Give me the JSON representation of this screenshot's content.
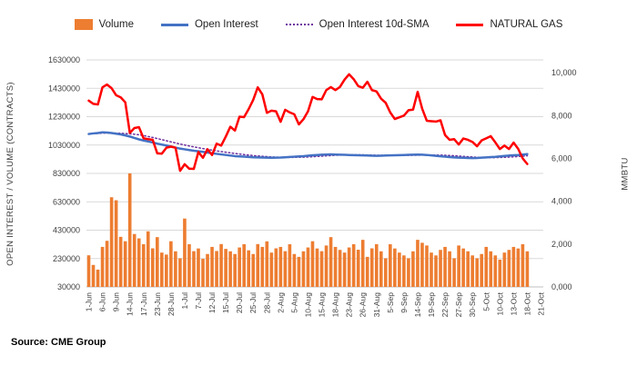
{
  "page": {
    "source_note": "Source: CME Group"
  },
  "chart_data": {
    "type": "combo",
    "title": "",
    "x_tick_labels": [
      "1-Jun",
      "6-Jun",
      "9-Jun",
      "14-Jun",
      "17-Jun",
      "23-Jun",
      "28-Jun",
      "1-Jul",
      "7-Jul",
      "12-Jul",
      "15-Jul",
      "20-Jul",
      "25-Jul",
      "28-Jul",
      "2-Aug",
      "5-Aug",
      "10-Aug",
      "15-Aug",
      "18-Aug",
      "23-Aug",
      "26-Aug",
      "31-Aug",
      "5-Sep",
      "9-Sep",
      "14-Sep",
      "19-Sep",
      "22-Sep",
      "27-Sep",
      "30-Sep",
      "5-Oct",
      "10-Oct",
      "13-Oct",
      "18-Oct",
      "21-Oct"
    ],
    "dates": [
      "1-Jun",
      "2-Jun",
      "3-Jun",
      "6-Jun",
      "7-Jun",
      "8-Jun",
      "9-Jun",
      "10-Jun",
      "13-Jun",
      "14-Jun",
      "15-Jun",
      "16-Jun",
      "17-Jun",
      "21-Jun",
      "22-Jun",
      "23-Jun",
      "24-Jun",
      "27-Jun",
      "28-Jun",
      "29-Jun",
      "30-Jun",
      "1-Jul",
      "5-Jul",
      "6-Jul",
      "7-Jul",
      "8-Jul",
      "11-Jul",
      "12-Jul",
      "13-Jul",
      "14-Jul",
      "15-Jul",
      "18-Jul",
      "19-Jul",
      "20-Jul",
      "21-Jul",
      "22-Jul",
      "25-Jul",
      "26-Jul",
      "27-Jul",
      "28-Jul",
      "29-Jul",
      "1-Aug",
      "2-Aug",
      "3-Aug",
      "4-Aug",
      "5-Aug",
      "8-Aug",
      "9-Aug",
      "10-Aug",
      "11-Aug",
      "12-Aug",
      "15-Aug",
      "16-Aug",
      "17-Aug",
      "18-Aug",
      "19-Aug",
      "22-Aug",
      "23-Aug",
      "24-Aug",
      "25-Aug",
      "26-Aug",
      "29-Aug",
      "30-Aug",
      "31-Aug",
      "1-Sep",
      "2-Sep",
      "6-Sep",
      "7-Sep",
      "8-Sep",
      "9-Sep",
      "12-Sep",
      "13-Sep",
      "14-Sep",
      "15-Sep",
      "16-Sep",
      "19-Sep",
      "20-Sep",
      "21-Sep",
      "22-Sep",
      "23-Sep",
      "26-Sep",
      "27-Sep",
      "28-Sep",
      "29-Sep",
      "30-Sep",
      "3-Oct",
      "4-Oct",
      "5-Oct",
      "6-Oct",
      "7-Oct",
      "10-Oct",
      "11-Oct",
      "12-Oct",
      "13-Oct",
      "14-Oct",
      "17-Oct",
      "18-Oct"
    ],
    "left_axis": {
      "label": "OPEN INTEREST / VOLUME (CONTRACTS)",
      "min": 30000,
      "max": 1630000,
      "tick_values": [
        1630000,
        1430000,
        1230000,
        1030000,
        830000,
        630000,
        430000,
        230000,
        30000
      ],
      "tick_labels": [
        "1630000",
        "1430000",
        "1230000",
        "1030000",
        "830000",
        "630000",
        "430000",
        "230000",
        "30000"
      ]
    },
    "right_axis": {
      "label": "MMBTU",
      "min": 0,
      "plot_max": 10600,
      "tick_values": [
        10000,
        8000,
        6000,
        4000,
        2000,
        0
      ],
      "tick_labels": [
        "10,000",
        "8,000",
        "6,000",
        "4,000",
        "2,000",
        "0,000"
      ]
    },
    "grid": "horizontal",
    "legend_position": "top",
    "series": [
      {
        "name": "Volume",
        "type": "bar",
        "axis": "left",
        "color": "#ED7D31",
        "values": [
          253000,
          185000,
          152000,
          312000,
          355000,
          662000,
          641000,
          383000,
          352000,
          830000,
          403000,
          372000,
          331000,
          422000,
          302000,
          381000,
          272000,
          258000,
          352000,
          281000,
          232000,
          512000,
          331000,
          282000,
          301000,
          228000,
          262000,
          312000,
          283000,
          332000,
          298000,
          281000,
          262000,
          308000,
          331000,
          288000,
          262000,
          332000,
          312000,
          351000,
          272000,
          302000,
          312000,
          282000,
          331000,
          262000,
          242000,
          281000,
          308000,
          352000,
          301000,
          282000,
          322000,
          381000,
          312000,
          291000,
          272000,
          308000,
          331000,
          292000,
          362000,
          242000,
          302000,
          331000,
          281000,
          232000,
          331000,
          301000,
          272000,
          252000,
          232000,
          281000,
          362000,
          341000,
          322000,
          272000,
          252000,
          291000,
          312000,
          281000,
          232000,
          322000,
          301000,
          281000,
          252000,
          232000,
          262000,
          312000,
          281000,
          252000,
          222000,
          272000,
          291000,
          312000,
          301000,
          331000,
          281000
        ]
      },
      {
        "name": "Open Interest",
        "type": "line",
        "axis": "left",
        "color": "#4472C4",
        "width": 2.5,
        "values": [
          1108000,
          1112000,
          1115000,
          1120000,
          1118000,
          1115000,
          1110000,
          1105000,
          1098000,
          1090000,
          1080000,
          1070000,
          1062000,
          1055000,
          1048000,
          1040000,
          1033000,
          1027000,
          1020000,
          1012000,
          1005000,
          1000000,
          995000,
          990000,
          986000,
          982000,
          977000,
          972000,
          968000,
          964000,
          960000,
          956000,
          952000,
          950000,
          948000,
          946000,
          944000,
          943000,
          942000,
          941000,
          940000,
          941000,
          942000,
          944000,
          946000,
          948000,
          950000,
          952000,
          955000,
          958000,
          960000,
          962000,
          963000,
          964000,
          963000,
          962000,
          961000,
          960000,
          959000,
          958000,
          957000,
          956000,
          955000,
          954000,
          955000,
          956000,
          957000,
          958000,
          959000,
          960000,
          961000,
          962000,
          963000,
          962000,
          960000,
          957000,
          954000,
          951000,
          948000,
          945000,
          943000,
          941000,
          940000,
          939000,
          938000,
          939000,
          941000,
          943000,
          945000,
          947000,
          950000,
          953000,
          956000,
          958000,
          960000,
          963000,
          966000
        ]
      },
      {
        "name": "Open Interest 10d-SMA",
        "type": "line",
        "style": "dotted",
        "axis": "left",
        "color": "#7030A0",
        "width": 1.5,
        "sma_window": 10,
        "derived_from": "Open Interest"
      },
      {
        "name": "NATURAL GAS",
        "type": "line",
        "axis": "right",
        "color": "#FF0000",
        "width": 2.5,
        "values": [
          8700,
          8550,
          8520,
          9320,
          9450,
          9280,
          8950,
          8850,
          8620,
          7190,
          7420,
          7460,
          6940,
          6900,
          6870,
          6240,
          6220,
          6500,
          6550,
          6500,
          5420,
          5730,
          5520,
          5510,
          6300,
          6030,
          6430,
          6160,
          6690,
          6600,
          7020,
          7480,
          7300,
          7950,
          7930,
          8300,
          8730,
          9320,
          8990,
          8130,
          8230,
          8200,
          7710,
          8270,
          8150,
          8060,
          7590,
          7830,
          8200,
          8870,
          8770,
          8760,
          9190,
          9330,
          9190,
          9340,
          9680,
          9930,
          9700,
          9380,
          9300,
          9580,
          9190,
          9130,
          8790,
          8600,
          8150,
          7840,
          7920,
          8000,
          8250,
          8280,
          9110,
          8320,
          7760,
          7740,
          7720,
          7780,
          7090,
          6870,
          6900,
          6650,
          6930,
          6870,
          6770,
          6570,
          6840,
          6940,
          7040,
          6750,
          6440,
          6600,
          6440,
          6740,
          6450,
          6000,
          5740
        ]
      }
    ],
    "source": "Source: CME Group"
  }
}
